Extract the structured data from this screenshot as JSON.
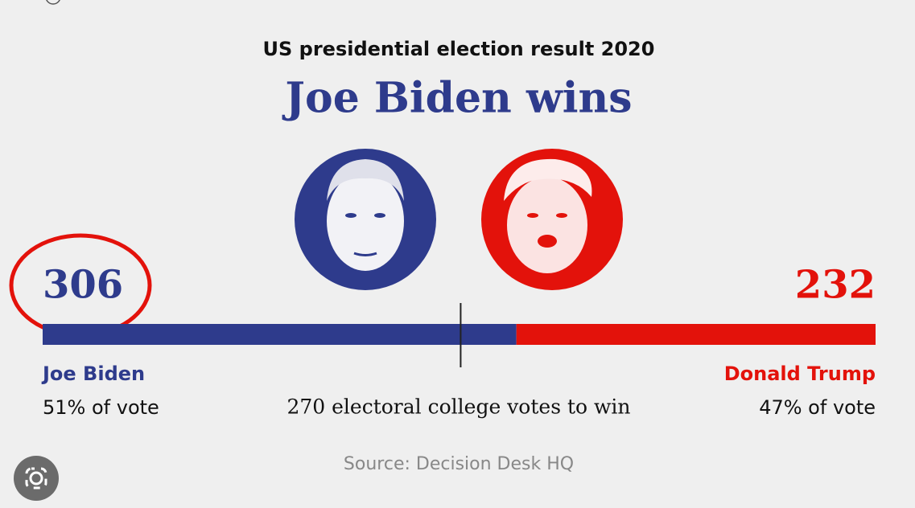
{
  "chart_data": {
    "type": "stacked-bar",
    "subtitle": "US presidential election result 2020",
    "title": "Joe Biden wins",
    "series": [
      {
        "name": "Joe Biden",
        "color": "#2e3b8c",
        "values": [
          306
        ],
        "vote_share": "51% of vote"
      },
      {
        "name": "Donald Trump",
        "color": "#e3120b",
        "values": [
          232
        ],
        "vote_share": "47% of vote"
      }
    ],
    "xlim": [
      0,
      538
    ],
    "threshold": {
      "value": 270,
      "label": "270 electoral college votes to win"
    },
    "source": "Source: Decision Desk HQ"
  }
}
